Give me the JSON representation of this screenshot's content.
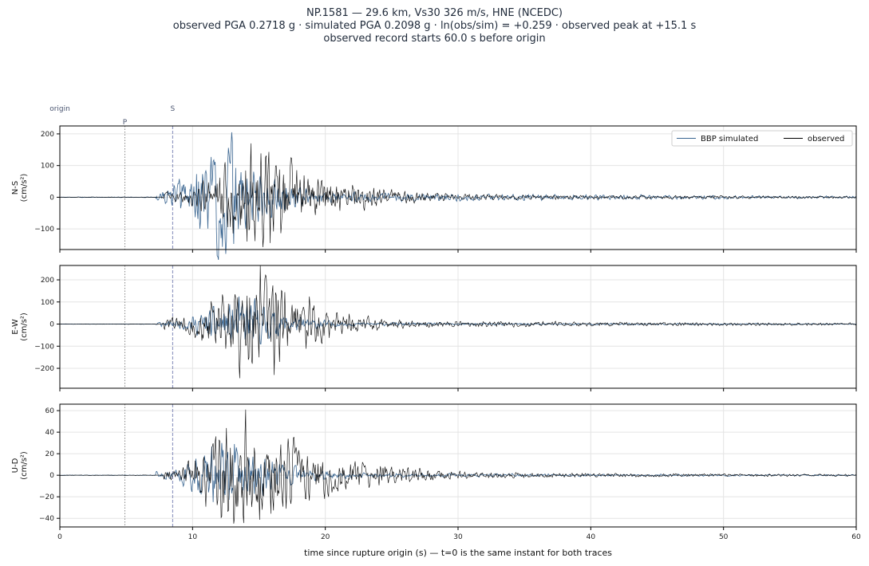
{
  "header": {
    "line1": "NP.1581  —  29.6 km, Vs30 326 m/s, HNE (NCEDC)",
    "line2": "observed PGA 0.2718 g   ·   simulated PGA 0.2098 g   ·   ln(obs/sim) = +0.259   ·   observed peak at +15.1 s",
    "line3": "observed record starts 60.0 s before origin"
  },
  "chart_data": {
    "type": "line",
    "xlabel": "time since rupture origin (s)   —   t=0 is the same instant for both traces",
    "xlim": [
      0,
      60
    ],
    "xticks": [
      0,
      10,
      20,
      30,
      40,
      50,
      60
    ],
    "grid": true,
    "legend_placement": "top-right (top panel)",
    "series_names": {
      "sim": "BBP simulated",
      "obs": "observed"
    },
    "colors": {
      "sim": "#3b6691",
      "obs": "#000000",
      "p_line": "#8a8a8a",
      "s_line": "#8088b8"
    },
    "markers": {
      "origin_label": "origin",
      "p_label": "P",
      "p_time": 4.9,
      "s_label": "S",
      "s_time": 8.5
    },
    "panels": [
      {
        "ylabel": "N-S\n(cm/s²)",
        "ylim": [
          -165,
          225
        ],
        "yticks": [
          -100,
          0,
          100,
          200
        ],
        "obs_peak": 170,
        "sim_peak": 205,
        "sim_center": 12.2,
        "sim_width": 2.8,
        "obs_center": 15.2,
        "obs_width": 5.0,
        "seed": 3
      },
      {
        "ylabel": "E-W\n(cm/s²)",
        "ylim": [
          -290,
          265
        ],
        "yticks": [
          -200,
          -100,
          0,
          100,
          200
        ],
        "obs_peak": 266,
        "sim_peak": 125,
        "sim_center": 14.0,
        "sim_width": 3.0,
        "obs_center": 15.1,
        "obs_width": 3.8,
        "seed": 11
      },
      {
        "ylabel": "U-D\n(cm/s²)",
        "ylim": [
          -48,
          66
        ],
        "yticks": [
          -40,
          -20,
          0,
          20,
          40,
          60
        ],
        "obs_peak": 61,
        "sim_peak": 30,
        "sim_center": 12.5,
        "sim_width": 3.5,
        "obs_center": 13.5,
        "obs_width": 6.0,
        "seed": 21
      }
    ]
  }
}
